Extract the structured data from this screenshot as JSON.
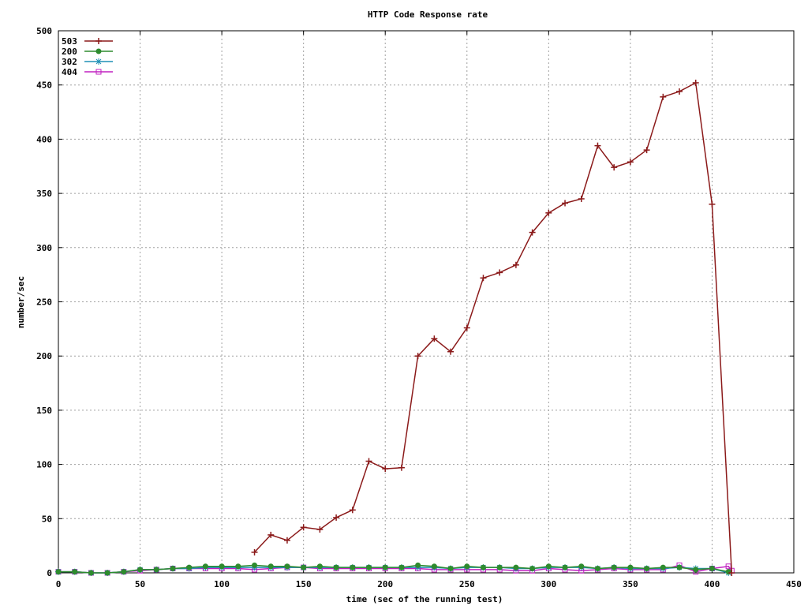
{
  "chart_data": {
    "type": "line",
    "title": "HTTP Code Response rate",
    "xlabel": "time (sec of the running test)",
    "ylabel": "number/sec",
    "xlim": [
      0,
      450
    ],
    "ylim": [
      0,
      500
    ],
    "xticks": [
      0,
      50,
      100,
      150,
      200,
      250,
      300,
      350,
      400,
      450
    ],
    "yticks": [
      0,
      50,
      100,
      150,
      200,
      250,
      300,
      350,
      400,
      450,
      500
    ],
    "grid": true,
    "legend": "top-left",
    "series": [
      {
        "name": "503",
        "color": "#8b1a1a",
        "marker": "plus",
        "x": [
          120,
          130,
          140,
          150,
          160,
          170,
          180,
          190,
          200,
          210,
          220,
          230,
          240,
          250,
          260,
          270,
          280,
          290,
          300,
          310,
          320,
          330,
          340,
          350,
          360,
          370,
          380,
          390,
          400,
          412
        ],
        "y": [
          19,
          35,
          30,
          42,
          40,
          51,
          58,
          103,
          96,
          97,
          200,
          216,
          204,
          226,
          272,
          277,
          284,
          314,
          332,
          341,
          345,
          394,
          374,
          379,
          390,
          439,
          444,
          452,
          340,
          0
        ]
      },
      {
        "name": "200",
        "color": "#2e8b2e",
        "marker": "filled-circle",
        "x": [
          0,
          10,
          20,
          30,
          40,
          50,
          60,
          70,
          80,
          90,
          100,
          110,
          120,
          130,
          140,
          150,
          160,
          170,
          180,
          190,
          200,
          210,
          220,
          230,
          240,
          250,
          260,
          270,
          280,
          290,
          300,
          310,
          320,
          330,
          340,
          350,
          360,
          370,
          380,
          390,
          400,
          410
        ],
        "y": [
          1,
          1,
          0,
          0,
          1,
          3,
          3,
          4,
          5,
          6,
          6,
          6,
          7,
          6,
          6,
          5,
          6,
          5,
          5,
          5,
          5,
          5,
          7,
          6,
          4,
          6,
          5,
          5,
          5,
          4,
          6,
          5,
          6,
          4,
          5,
          5,
          4,
          5,
          5,
          3,
          4,
          1
        ]
      },
      {
        "name": "302",
        "color": "#1f8fb5",
        "marker": "star",
        "x": [
          0,
          10,
          20,
          30,
          40,
          50,
          60,
          70,
          80,
          90,
          100,
          110,
          120,
          130,
          140,
          150,
          160,
          170,
          180,
          190,
          200,
          210,
          220,
          230,
          240,
          250,
          260,
          270,
          280,
          290,
          300,
          310,
          320,
          330,
          340,
          350,
          360,
          370,
          380,
          390,
          400,
          410
        ],
        "y": [
          1,
          1,
          0,
          0,
          1,
          3,
          3,
          4,
          4,
          5,
          5,
          5,
          5,
          5,
          5,
          5,
          5,
          5,
          5,
          5,
          5,
          5,
          5,
          5,
          4,
          5,
          5,
          5,
          4,
          4,
          5,
          5,
          5,
          4,
          5,
          4,
          4,
          4,
          5,
          4,
          4,
          0
        ]
      },
      {
        "name": "404",
        "color": "#c020c0",
        "marker": "open-square",
        "x": [
          0,
          10,
          20,
          30,
          40,
          50,
          60,
          70,
          80,
          90,
          100,
          110,
          120,
          130,
          140,
          150,
          160,
          170,
          180,
          190,
          200,
          210,
          220,
          230,
          240,
          250,
          260,
          270,
          280,
          290,
          300,
          310,
          320,
          330,
          340,
          350,
          360,
          370,
          380,
          390,
          400,
          410,
          412
        ],
        "y": [
          1,
          1,
          0,
          0,
          1,
          2,
          3,
          4,
          4,
          4,
          4,
          4,
          3,
          4,
          5,
          5,
          4,
          4,
          4,
          4,
          4,
          4,
          4,
          3,
          3,
          3,
          3,
          3,
          2,
          2,
          4,
          3,
          2,
          3,
          4,
          3,
          3,
          3,
          7,
          1,
          4,
          6,
          2
        ]
      }
    ]
  }
}
